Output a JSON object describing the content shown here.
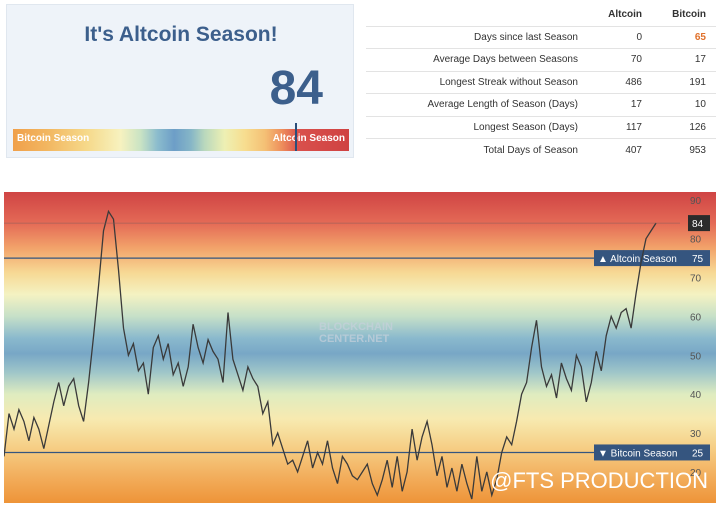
{
  "index_card": {
    "title": "It's Altcoin Season!",
    "value": "84",
    "bar_left_label": "Bitcoin Season",
    "bar_right_label": "Altcoin Season",
    "needle_value": 84
  },
  "stats": {
    "headers": [
      "",
      "Altcoin",
      "Bitcoin"
    ],
    "rows": [
      {
        "metric": "Days since last Season",
        "altcoin": "0",
        "bitcoin": "65"
      },
      {
        "metric": "Average Days between Seasons",
        "altcoin": "70",
        "bitcoin": "17"
      },
      {
        "metric": "Longest Streak without Season",
        "altcoin": "486",
        "bitcoin": "191"
      },
      {
        "metric": "Average Length of Season (Days)",
        "altcoin": "17",
        "bitcoin": "10"
      },
      {
        "metric": "Longest Season (Days)",
        "altcoin": "117",
        "bitcoin": "126"
      },
      {
        "metric": "Total Days of Season",
        "altcoin": "407",
        "bitcoin": "953"
      }
    ]
  },
  "chart_data": {
    "type": "line",
    "ylim": [
      12,
      92
    ],
    "yticks": [
      20,
      25,
      30,
      40,
      50,
      60,
      70,
      80,
      84,
      90
    ],
    "grid": false,
    "watermark_line1": "BLOCKCHAIN",
    "watermark_line2": "CENTER.NET",
    "credit": "@FTS PRODUCTION",
    "current_value": 84,
    "current_label": "84",
    "thresholds": [
      {
        "name": "Altcoin Season",
        "value": 75,
        "label": "▲ Altcoin Season",
        "value_label": "75"
      },
      {
        "name": "Bitcoin Season",
        "value": 25,
        "label": "▼ Bitcoin Season",
        "value_label": "25"
      }
    ],
    "series": [
      {
        "values": [
          24,
          35,
          31,
          36,
          33,
          28,
          34,
          31,
          26,
          32,
          38,
          43,
          37,
          42,
          44,
          37,
          33,
          43,
          55,
          68,
          82,
          87,
          85,
          72,
          57,
          50,
          53,
          46,
          48,
          40,
          52,
          55,
          49,
          53,
          45,
          48,
          42,
          47,
          58,
          52,
          48,
          54,
          51,
          49,
          43,
          61,
          49,
          45,
          41,
          47,
          44,
          42,
          35,
          38,
          27,
          30,
          26,
          22,
          23,
          20,
          24,
          28,
          21,
          25,
          22,
          28,
          21,
          17,
          24,
          22,
          19,
          18,
          20,
          22,
          17,
          14,
          18,
          23,
          16,
          24,
          15,
          20,
          31,
          23,
          29,
          33,
          27,
          19,
          24,
          16,
          21,
          15,
          22,
          17,
          13,
          24,
          15,
          20,
          14,
          18,
          25,
          29,
          27,
          33,
          40,
          43,
          52,
          59,
          47,
          42,
          45,
          39,
          48,
          44,
          41,
          50,
          47,
          38,
          43,
          51,
          46,
          55,
          60,
          57,
          61,
          62,
          57,
          66,
          74,
          80,
          82,
          84
        ]
      }
    ]
  },
  "colors": {
    "title": "#3c5f8c",
    "tag_bg": "#35557f",
    "current_bg": "#2b2b2b",
    "line": "#3a3a3a",
    "highlight": "#e0702a"
  }
}
